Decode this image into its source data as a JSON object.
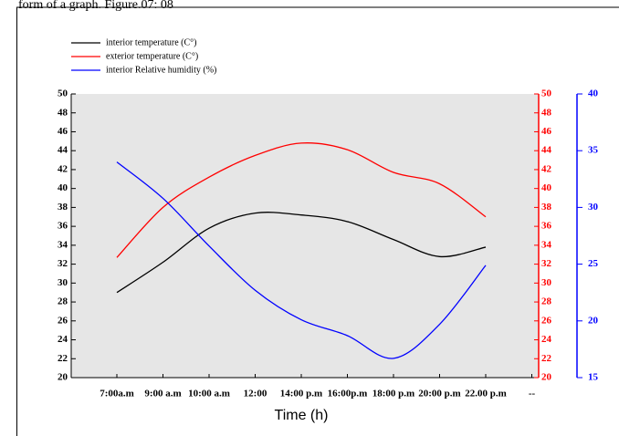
{
  "caption": "form of a graph. Figure.07: 08",
  "chart_data": {
    "type": "line",
    "x_label": "Time (h)",
    "categories": [
      "7:00a.m",
      "9:00 a.m",
      "10:00 a.m",
      "12:00",
      "14:00 p.m",
      "16:00p.m",
      "18:00 p.m",
      "20:00 p.m",
      "22.00 p.m",
      "--"
    ],
    "series": [
      {
        "name": "interior temperature (C°)",
        "color": "#000000",
        "values": [
          29,
          32.2,
          35.8,
          37.4,
          37.2,
          36.5,
          34.6,
          32.8,
          33.8,
          null
        ]
      },
      {
        "name": "exterior temperature (C°)",
        "color": "#ff0000",
        "axis": "y2",
        "values": [
          32.7,
          38,
          41.2,
          43.5,
          44.8,
          44.1,
          41.7,
          40.5,
          37,
          null
        ]
      },
      {
        "name": "interior Relative humidity (%)",
        "color": "#0000ff",
        "axis": "y3",
        "values": [
          34,
          30.8,
          26.6,
          22.7,
          20.1,
          18.7,
          16.7,
          19.7,
          24.9,
          null
        ]
      }
    ],
    "ylim": [
      20,
      50
    ],
    "yticks": [
      20,
      22,
      24,
      26,
      28,
      30,
      32,
      34,
      36,
      38,
      40,
      42,
      44,
      46,
      48,
      50
    ],
    "y2lim": [
      20,
      50
    ],
    "y2ticks": [
      20,
      22,
      24,
      26,
      28,
      30,
      32,
      34,
      36,
      38,
      40,
      42,
      44,
      46,
      48,
      50
    ],
    "y3lim": [
      15,
      40
    ],
    "y3ticks": [
      15,
      20,
      25,
      30,
      35,
      40
    ],
    "y2color": "#ff0000",
    "y3color": "#0000ff",
    "plot_background": "#e6e6e6"
  }
}
